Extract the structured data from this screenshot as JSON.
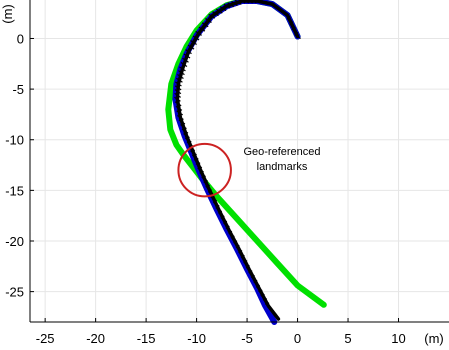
{
  "chart_data": {
    "type": "line",
    "title": "",
    "xlabel": "(m)",
    "ylabel": "(m)",
    "xlim": [
      -26.5,
      15
    ],
    "ylim": [
      -28,
      3.8
    ],
    "xticks": [
      -25,
      -20,
      -15,
      -10,
      -5,
      0,
      5,
      10
    ],
    "yticks": [
      0,
      -5,
      -10,
      -15,
      -20,
      -25
    ],
    "grid": true,
    "series": [
      {
        "color": "#00e000",
        "x": [
          0,
          -1.0,
          -2.5,
          -4.0,
          -5.5,
          -7.0,
          -8.5,
          -10.0,
          -11.0,
          -11.8,
          -12.5,
          -12.8,
          -12.6,
          -12.0,
          -11.3,
          -10.5,
          -9.5,
          -8.0,
          -6.0,
          -4.0,
          -2.0,
          0,
          2.6
        ],
        "y": [
          0.2,
          2.3,
          3.4,
          3.7,
          3.7,
          3.3,
          2.4,
          0.8,
          -0.8,
          -2.5,
          -4.5,
          -7.0,
          -9.0,
          -10.5,
          -11.5,
          -12.5,
          -13.8,
          -15.6,
          -17.8,
          -20.0,
          -22.2,
          -24.4,
          -26.3
        ]
      },
      {
        "color": "#0000cc",
        "x": [
          0,
          -1.0,
          -2.5,
          -4.0,
          -5.5,
          -7.0,
          -8.5,
          -10.0,
          -11.0,
          -11.6,
          -12.0,
          -12.1,
          -11.8,
          -11.2,
          -10.5,
          -9.8,
          -9.0,
          -8.0,
          -7.0,
          -6.0,
          -5.0,
          -4.0,
          -3.2,
          -2.3
        ],
        "y": [
          0.2,
          2.3,
          3.4,
          3.7,
          3.7,
          3.2,
          2.2,
          0.3,
          -1.5,
          -3.0,
          -4.5,
          -6.0,
          -7.8,
          -9.6,
          -11.3,
          -13.0,
          -14.8,
          -16.9,
          -18.9,
          -20.8,
          -22.8,
          -24.7,
          -26.4,
          -28.0
        ]
      },
      {
        "color": "#000000",
        "x": [
          0,
          -1.0,
          -2.5,
          -4.0,
          -5.5,
          -7.0,
          -8.5,
          -9.8,
          -10.8,
          -11.4,
          -11.8,
          -11.9,
          -11.6,
          -11.0,
          -10.3,
          -9.6,
          -8.8,
          -7.8,
          -6.8,
          -5.8,
          -4.8,
          -3.8,
          -2.9,
          -1.9
        ],
        "y": [
          0.2,
          2.3,
          3.4,
          3.7,
          3.7,
          3.2,
          2.2,
          0.5,
          -1.3,
          -3.0,
          -4.5,
          -6.0,
          -7.8,
          -9.6,
          -11.3,
          -13.0,
          -14.8,
          -16.9,
          -18.9,
          -20.8,
          -22.8,
          -24.7,
          -26.4,
          -27.7
        ]
      }
    ],
    "annotation": {
      "lines": [
        "Geo-referenced",
        "landmarks"
      ],
      "circle_center": [
        -9.2,
        -13.0
      ],
      "circle_radius": 2.6
    }
  }
}
